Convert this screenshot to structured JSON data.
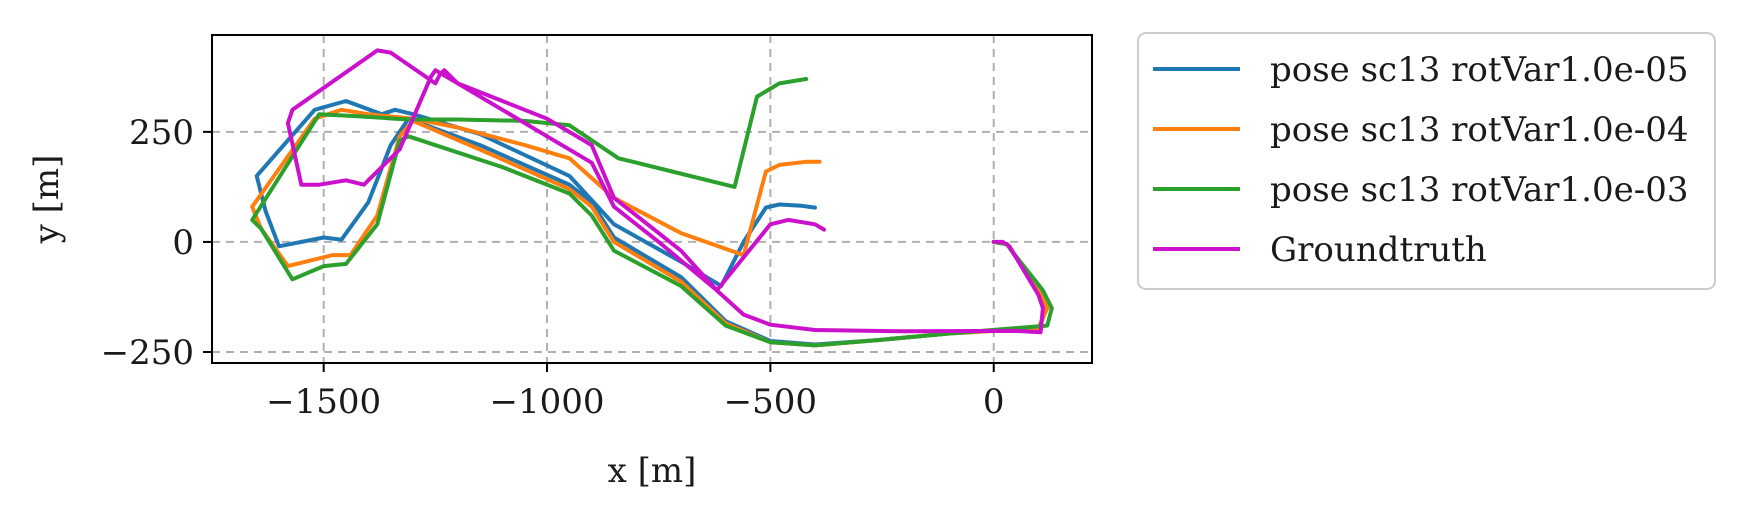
{
  "chart_data": {
    "type": "line",
    "xlabel": "x [m]",
    "ylabel": "y [m]",
    "xlim": [
      -1750,
      220
    ],
    "ylim": [
      -275,
      470
    ],
    "xticks": [
      -1500,
      -1000,
      -500,
      0
    ],
    "xtick_labels": [
      "−1500",
      "−1000",
      "−500",
      "0"
    ],
    "yticks": [
      -250,
      0,
      250
    ],
    "ytick_labels": [
      "−250",
      "0",
      "250"
    ],
    "grid": true,
    "legend_position": "outside-right-top",
    "series": [
      {
        "name": "pose sc13 rotVar1.0e-05",
        "color": "#1f77b4",
        "points": [
          [
            -400,
            78
          ],
          [
            -430,
            82
          ],
          [
            -480,
            85
          ],
          [
            -510,
            78
          ],
          [
            -560,
            0
          ],
          [
            -610,
            -100
          ],
          [
            -700,
            -45
          ],
          [
            -850,
            40
          ],
          [
            -950,
            150
          ],
          [
            -1150,
            245
          ],
          [
            -1300,
            290
          ],
          [
            -1340,
            300
          ],
          [
            -1370,
            290
          ],
          [
            -1450,
            320
          ],
          [
            -1520,
            300
          ],
          [
            -1650,
            150
          ],
          [
            -1630,
            70
          ],
          [
            -1600,
            -10
          ],
          [
            -1500,
            10
          ],
          [
            -1460,
            5
          ],
          [
            -1400,
            90
          ],
          [
            -1350,
            220
          ],
          [
            -1310,
            280
          ],
          [
            -1150,
            220
          ],
          [
            -950,
            130
          ],
          [
            -900,
            90
          ],
          [
            -850,
            10
          ],
          [
            -700,
            -80
          ],
          [
            -600,
            -180
          ],
          [
            -500,
            -225
          ],
          [
            -400,
            -233
          ],
          [
            -250,
            -222
          ],
          [
            -100,
            -208
          ],
          [
            100,
            -196
          ],
          [
            120,
            -150
          ],
          [
            100,
            -110
          ],
          [
            40,
            -20
          ],
          [
            30,
            -5
          ],
          [
            0,
            0
          ]
        ]
      },
      {
        "name": "pose sc13 rotVar1.0e-04",
        "color": "#ff7f0e",
        "points": [
          [
            -390,
            182
          ],
          [
            -420,
            182
          ],
          [
            -480,
            175
          ],
          [
            -510,
            160
          ],
          [
            -560,
            -30
          ],
          [
            -700,
            20
          ],
          [
            -850,
            100
          ],
          [
            -950,
            190
          ],
          [
            -1050,
            220
          ],
          [
            -1200,
            260
          ],
          [
            -1300,
            280
          ],
          [
            -1400,
            290
          ],
          [
            -1460,
            300
          ],
          [
            -1520,
            280
          ],
          [
            -1660,
            80
          ],
          [
            -1640,
            30
          ],
          [
            -1580,
            -55
          ],
          [
            -1480,
            -30
          ],
          [
            -1440,
            -30
          ],
          [
            -1380,
            60
          ],
          [
            -1330,
            240
          ],
          [
            -1300,
            275
          ],
          [
            -1150,
            210
          ],
          [
            -950,
            120
          ],
          [
            -900,
            80
          ],
          [
            -850,
            0
          ],
          [
            -700,
            -90
          ],
          [
            -600,
            -185
          ],
          [
            -500,
            -228
          ],
          [
            -400,
            -235
          ],
          [
            -250,
            -222
          ],
          [
            -100,
            -208
          ],
          [
            100,
            -196
          ],
          [
            120,
            -150
          ],
          [
            100,
            -110
          ],
          [
            40,
            -20
          ],
          [
            30,
            -5
          ],
          [
            0,
            0
          ]
        ]
      },
      {
        "name": "pose sc13 rotVar1.0e-03",
        "color": "#2ca02c",
        "points": [
          [
            -420,
            370
          ],
          [
            -480,
            360
          ],
          [
            -530,
            330
          ],
          [
            -580,
            125
          ],
          [
            -720,
            160
          ],
          [
            -840,
            190
          ],
          [
            -950,
            265
          ],
          [
            -1050,
            275
          ],
          [
            -1200,
            278
          ],
          [
            -1300,
            278
          ],
          [
            -1340,
            280
          ],
          [
            -1370,
            282
          ],
          [
            -1420,
            285
          ],
          [
            -1510,
            290
          ],
          [
            -1660,
            50
          ],
          [
            -1640,
            30
          ],
          [
            -1570,
            -85
          ],
          [
            -1500,
            -55
          ],
          [
            -1450,
            -50
          ],
          [
            -1380,
            40
          ],
          [
            -1330,
            230
          ],
          [
            -1310,
            240
          ],
          [
            -1100,
            170
          ],
          [
            -950,
            110
          ],
          [
            -900,
            60
          ],
          [
            -850,
            -20
          ],
          [
            -700,
            -100
          ],
          [
            -600,
            -190
          ],
          [
            -500,
            -228
          ],
          [
            -400,
            -235
          ],
          [
            -250,
            -222
          ],
          [
            -100,
            -208
          ],
          [
            120,
            -190
          ],
          [
            130,
            -150
          ],
          [
            110,
            -110
          ],
          [
            40,
            -20
          ],
          [
            30,
            -5
          ],
          [
            0,
            0
          ]
        ]
      },
      {
        "name": "Groundtruth",
        "color": "#cc11cc",
        "points": [
          [
            0,
            0
          ],
          [
            20,
            0
          ],
          [
            35,
            -10
          ],
          [
            100,
            -120
          ],
          [
            110,
            -150
          ],
          [
            105,
            -205
          ],
          [
            50,
            -202
          ],
          [
            -200,
            -203
          ],
          [
            -400,
            -200
          ],
          [
            -500,
            -188
          ],
          [
            -560,
            -165
          ],
          [
            -620,
            -110
          ],
          [
            -750,
            0
          ],
          [
            -850,
            80
          ],
          [
            -900,
            180
          ],
          [
            -1000,
            240
          ],
          [
            -1100,
            300
          ],
          [
            -1250,
            390
          ],
          [
            -1260,
            375
          ],
          [
            -1330,
            210
          ],
          [
            -1410,
            130
          ],
          [
            -1450,
            140
          ],
          [
            -1510,
            130
          ],
          [
            -1550,
            130
          ],
          [
            -1580,
            270
          ],
          [
            -1570,
            300
          ],
          [
            -1380,
            435
          ],
          [
            -1350,
            430
          ],
          [
            -1250,
            360
          ],
          [
            -1240,
            380
          ],
          [
            -1230,
            390
          ],
          [
            -1200,
            360
          ],
          [
            -1100,
            320
          ],
          [
            -1000,
            280
          ],
          [
            -900,
            220
          ],
          [
            -850,
            100
          ],
          [
            -700,
            -20
          ],
          [
            -620,
            -110
          ],
          [
            -500,
            40
          ],
          [
            -460,
            50
          ],
          [
            -400,
            40
          ],
          [
            -380,
            28
          ]
        ]
      }
    ]
  }
}
